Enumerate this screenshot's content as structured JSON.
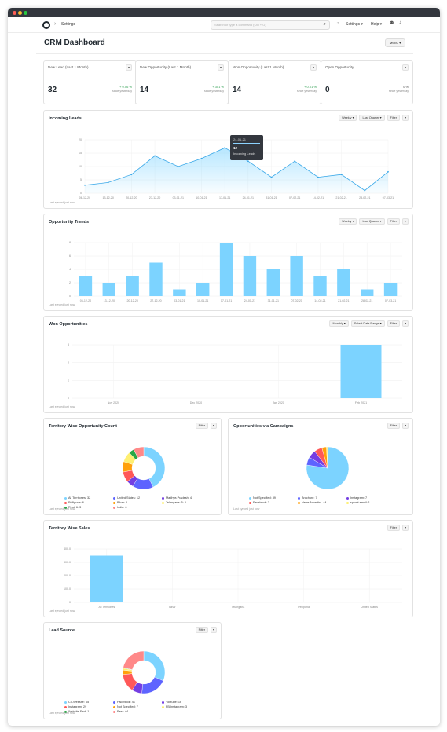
{
  "navbar": {
    "breadcrumb": "Settings",
    "search_placeholder": "Search or type a command (Ctrl + G)",
    "settings_label": "Settings ▾",
    "help_label": "Help ▾"
  },
  "page": {
    "title": "CRM Dashboard",
    "menu_label": "Menu ▾"
  },
  "stats": [
    {
      "title": "New Lead (Last 1 Month)",
      "value": "32",
      "change": "+ 0.06 %",
      "since": "since yesterday",
      "change_color": "#2e9e50"
    },
    {
      "title": "New Opportunity (Last 1 Month)",
      "value": "14",
      "change": "+ 301 %",
      "since": "since yesterday",
      "change_color": "#2e9e50"
    },
    {
      "title": "Won Opportunity (Last 1 Month)",
      "value": "14",
      "change": "+ 0.01 %",
      "since": "since yesterday",
      "change_color": "#2e9e50"
    },
    {
      "title": "Open Opportunity",
      "value": "0",
      "change": "0 %",
      "since": "since yesterday",
      "change_color": "#555555"
    }
  ],
  "synced_label": "Last synced just now",
  "incoming_leads": {
    "title": "Incoming Leads",
    "controls": [
      "Weekly ▾",
      "Last Quarter ▾",
      "Filter"
    ],
    "tooltip": {
      "date": "24-01-21",
      "value": "12",
      "name": "Incoming Leads"
    }
  },
  "opportunity_trends": {
    "title": "Opportunity Trends",
    "controls": [
      "Weekly ▾",
      "Last Quarter ▾",
      "Filter"
    ]
  },
  "won_opportunities": {
    "title": "Won Opportunities",
    "controls": [
      "Monthly ▾",
      "Select Date Range ▾",
      "Filter"
    ]
  },
  "territory_count": {
    "title": "Territory Wise Opportunity Count",
    "controls": [
      "Filter"
    ],
    "legend": [
      "All Territories: 32",
      "United States: 12",
      "Madhya Pradesh: 4",
      "Pellipuna: 6",
      "Bihar: 6",
      "Telangana: 5: 6",
      "Rest: 6: 3",
      "India: 6"
    ]
  },
  "campaigns": {
    "title": "Opportunities via Campaigns",
    "controls": [
      "Filter"
    ],
    "legend": [
      "Not Specified: 89",
      "Brochure: 7",
      "Instagram: 7",
      "Facebook: 7",
      "News Advertis...: 4",
      "sprout email: 1"
    ]
  },
  "territory_sales": {
    "title": "Territory Wise Sales",
    "controls": [
      "Filter"
    ]
  },
  "lead_source": {
    "title": "Lead Source",
    "controls": [
      "Filter"
    ],
    "legend": [
      "Co-Website: 65",
      "Facebook: 41",
      "Youtube: 16",
      "Instagram: 29",
      "Not Specified: 7",
      "FB/Instagram: 3",
      "Website-Fwd: 1",
      "Rest: 44"
    ]
  },
  "colors": {
    "accent": "#7cd3ff",
    "accent_dark": "#3aa8e8",
    "pie": [
      "#7cd3ff",
      "#5e64ff",
      "#743ee2",
      "#ff5858",
      "#ffa00a",
      "#feef72",
      "#28a745",
      "#ff8989",
      "#8a8a8a"
    ]
  },
  "chart_data": [
    {
      "type": "area",
      "title": "Incoming Leads",
      "categories": [
        "06-12-20",
        "13-12-20",
        "20-12-20",
        "27-12-20",
        "03-01-21",
        "10-01-21",
        "17-01-21",
        "24-01-21",
        "31-01-21",
        "07-02-21",
        "14-02-21",
        "21-02-21",
        "28-02-21",
        "07-03-21"
      ],
      "values": [
        3,
        4,
        7,
        14,
        10,
        13,
        17,
        12,
        6,
        12,
        6,
        7,
        1,
        8
      ],
      "ylim": [
        0,
        20
      ],
      "yticks": [
        0,
        5,
        10,
        15,
        20
      ]
    },
    {
      "type": "bar",
      "title": "Opportunity Trends",
      "categories": [
        "06-12-20",
        "13-12-20",
        "20-12-20",
        "27-12-20",
        "03-01-21",
        "10-01-21",
        "17-01-21",
        "24-01-21",
        "31-01-21",
        "07-02-21",
        "14-02-21",
        "21-02-21",
        "28-02-21",
        "07-03-21"
      ],
      "values": [
        3,
        2,
        3,
        5,
        1,
        2,
        8,
        6,
        4,
        6,
        3,
        4,
        1,
        2
      ],
      "ylim": [
        0,
        8
      ],
      "yticks": [
        0,
        2,
        4,
        6,
        8
      ]
    },
    {
      "type": "bar",
      "title": "Won Opportunities",
      "categories": [
        "Nov 2020",
        "Dec 2020",
        "Jan 2021",
        "Feb 2021"
      ],
      "values": [
        0,
        0,
        0,
        3
      ],
      "ylim": [
        0,
        3
      ],
      "yticks": [
        0,
        1,
        2,
        3
      ]
    },
    {
      "type": "pie",
      "title": "Territory Wise Opportunity Count",
      "labels": [
        "All Territories",
        "United States",
        "Madhya Pradesh",
        "Pellipuna",
        "Bihar",
        "Telangana: 5",
        "Rest: 6",
        "India"
      ],
      "values": [
        32,
        12,
        4,
        6,
        6,
        6,
        3,
        6
      ]
    },
    {
      "type": "pie",
      "title": "Opportunities via Campaigns",
      "labels": [
        "Not Specified",
        "Brochure",
        "Instagram",
        "Facebook",
        "News Advertis...",
        "sprout email"
      ],
      "values": [
        89,
        7,
        7,
        7,
        4,
        1
      ]
    },
    {
      "type": "bar",
      "title": "Territory Wise Sales",
      "categories": [
        "All Territories",
        "Bihar",
        "Telangana",
        "Pellipuna",
        "United States"
      ],
      "values": [
        350,
        0,
        0,
        0,
        0
      ],
      "ylim": [
        0,
        400
      ],
      "yticks": [
        0,
        100,
        200,
        300,
        400
      ],
      "ytick_labels": [
        "0",
        "100.0",
        "200.0",
        "300.0",
        "400.0"
      ]
    },
    {
      "type": "pie",
      "title": "Lead Source",
      "labels": [
        "Co-Website",
        "Facebook",
        "Youtube",
        "Instagram",
        "Not Specified",
        "FB/Instagram",
        "Website-Fwd",
        "Rest"
      ],
      "values": [
        65,
        41,
        16,
        29,
        7,
        3,
        1,
        44
      ]
    }
  ]
}
